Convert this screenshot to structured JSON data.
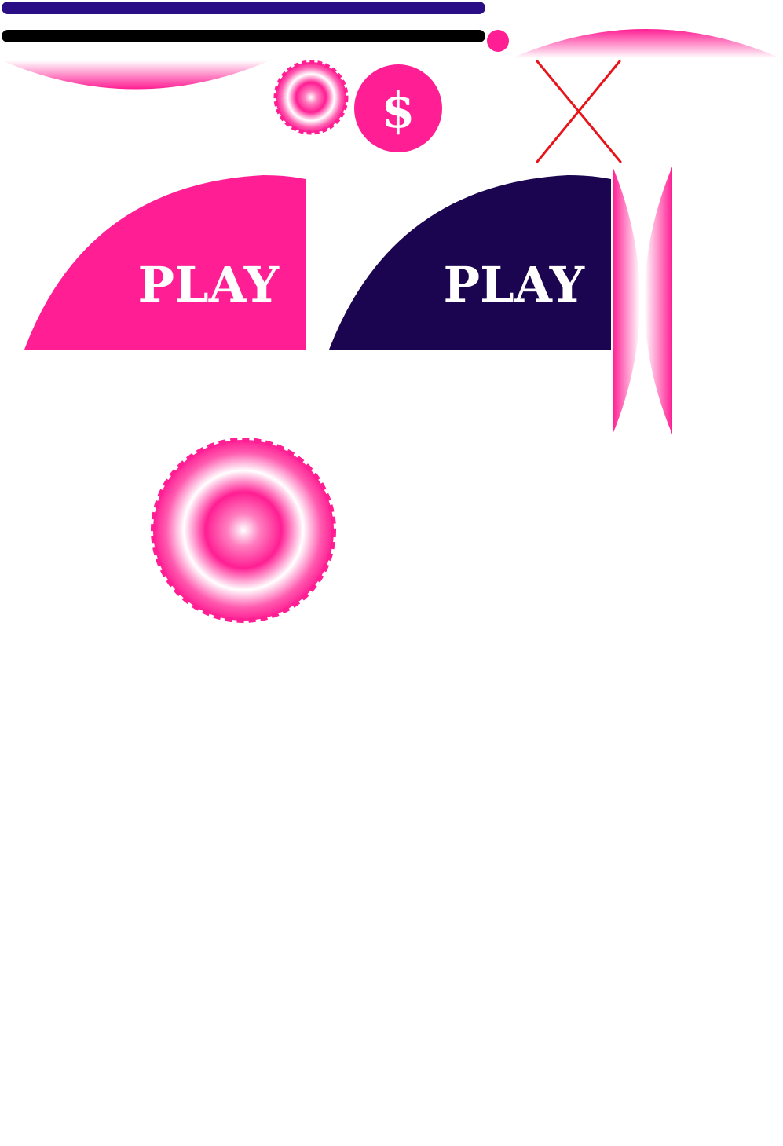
{
  "sprite_sheet": {
    "play_button_pink": {
      "label": "PLAY",
      "color": "#ff1e93"
    },
    "play_button_navy": {
      "label": "PLAY",
      "color": "#1b0550"
    },
    "coin": {
      "symbol": "$",
      "color": "#ff1e93"
    },
    "bars": {
      "progress_color": "#2a0e86",
      "track_color": "#000000",
      "knob_color": "#ff1e93"
    },
    "close_icon": {
      "color": "#e8141c"
    },
    "accent": "#ff1e93"
  }
}
